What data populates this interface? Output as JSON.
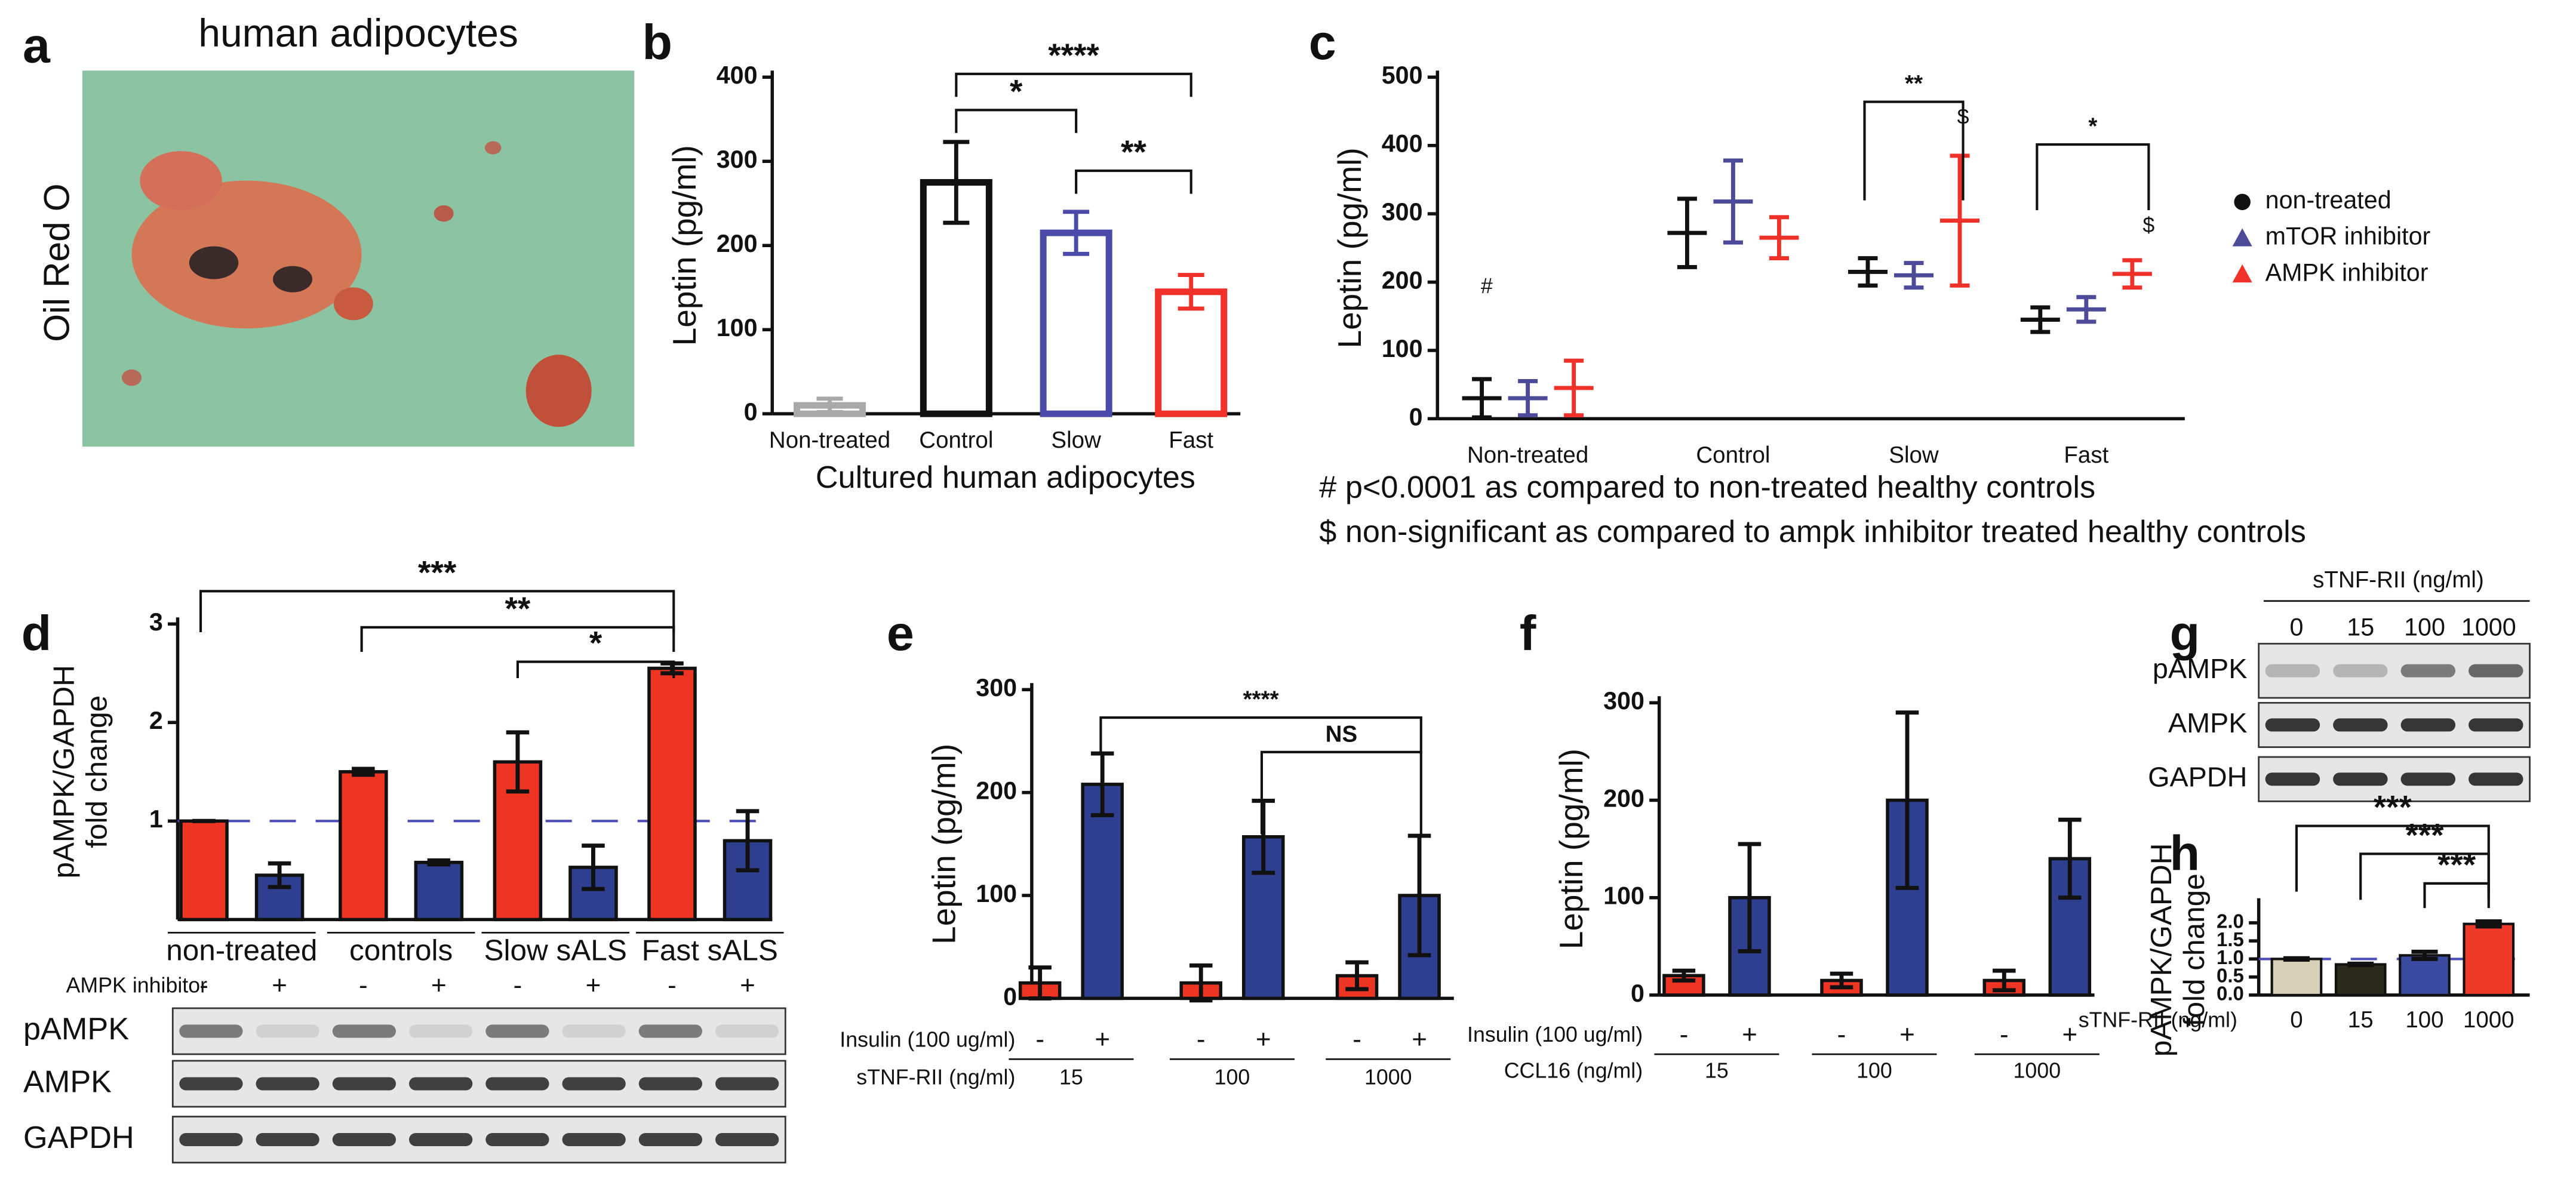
{
  "figure": {
    "panel_labels": [
      "a",
      "b",
      "c",
      "d",
      "e",
      "f",
      "g",
      "h"
    ],
    "image_title": "human adipocytes",
    "stain": "Oil Red O",
    "blot_g": {
      "title": "sTNF-RII (ng/ml)",
      "lanes": [
        "0",
        "15",
        "100",
        "1000"
      ],
      "rows": [
        "pAMPK",
        "AMPK",
        "GAPDH"
      ]
    }
  },
  "chart_data": [
    {
      "type": "bar",
      "bar_style": "outline",
      "ylabel": "Leptin (pg/ml)",
      "xlabel": "Cultured human adipocytes",
      "categories": [
        "Non-treated",
        "Control",
        "Slow",
        "Fast"
      ],
      "values": [
        10,
        275,
        215,
        145
      ],
      "errors": [
        8,
        48,
        25,
        20
      ],
      "colors": [
        "#a9a9a9",
        "#111111",
        "#4a4aa8",
        "#f0312a"
      ],
      "ylim": [
        0,
        400
      ],
      "yticks": [
        0,
        100,
        200,
        300,
        400
      ],
      "annotations": [
        "****",
        "*",
        "**"
      ]
    },
    {
      "type": "dot",
      "ylabel": "Leptin (pg/ml)",
      "categories": [
        "Non-treated",
        "Control",
        "Slow",
        "Fast"
      ],
      "series": [
        {
          "name": "non-treated",
          "color": "#111111",
          "marker": "circle",
          "values": [
            30,
            272,
            215,
            145
          ],
          "errors": [
            28,
            50,
            20,
            18
          ]
        },
        {
          "name": "mTOR inhibitor",
          "color": "#4b4b9a",
          "marker": "triangle",
          "values": [
            30,
            318,
            210,
            160
          ],
          "errors": [
            25,
            60,
            18,
            18
          ]
        },
        {
          "name": "AMPK inhibitor",
          "color": "#f0312a",
          "marker": "triangle",
          "values": [
            45,
            265,
            290,
            212
          ],
          "errors": [
            40,
            30,
            95,
            20
          ]
        }
      ],
      "ylim": [
        0,
        500
      ],
      "yticks": [
        0,
        100,
        200,
        300,
        400,
        500
      ],
      "legend": "right",
      "annotations": [
        "**",
        "*",
        "$",
        "$",
        "#"
      ],
      "notes": [
        "# p<0.0001 as compared to non-treated healthy controls",
        "$ non-significant as compared to ampk inhibitor treated healthy controls"
      ]
    },
    {
      "type": "grouped_bar",
      "ylabel": [
        "pAMPK/GAPDH",
        "fold change"
      ],
      "categories": [
        "non-treated",
        "controls",
        "Slow sALS",
        "Fast sALS"
      ],
      "series": [
        {
          "color": "#ee3524",
          "values": [
            1.0,
            1.5,
            1.6,
            2.55
          ],
          "errors": [
            0,
            0.03,
            0.3,
            0.05
          ]
        },
        {
          "color": "#2e3f8f",
          "values": [
            0.45,
            0.58,
            0.53,
            0.8
          ],
          "errors": [
            0.12,
            0.02,
            0.22,
            0.3
          ]
        }
      ],
      "ylim": [
        0,
        3
      ],
      "yticks": [
        1,
        2,
        3
      ],
      "reference_line": 1,
      "rows": [
        {
          "label": "AMPK inhibitor",
          "values": [
            "-",
            "+"
          ]
        }
      ],
      "blot_rows": [
        "pAMPK",
        "AMPK",
        "GAPDH"
      ],
      "annotations": [
        "***",
        "**",
        "*"
      ]
    },
    {
      "type": "grouped_bar",
      "ylabel": "Leptin (pg/ml)",
      "xlabel": "sTNF-RII (ng/ml)",
      "categories": [
        "15",
        "100",
        "1000"
      ],
      "series": [
        {
          "color": "#ee3524",
          "values": [
            15,
            15,
            22
          ],
          "errors": [
            15,
            17,
            13
          ]
        },
        {
          "color": "#2e3f8f",
          "values": [
            208,
            157,
            100
          ],
          "errors": [
            30,
            35,
            58
          ]
        }
      ],
      "ylim": [
        0,
        300
      ],
      "yticks": [
        0,
        100,
        200,
        300
      ],
      "rows": [
        {
          "label": "Insulin (100 ug/ml)",
          "values": [
            "-",
            "+"
          ]
        }
      ],
      "annotations": [
        "****",
        "NS"
      ]
    },
    {
      "type": "grouped_bar",
      "ylabel": "Leptin (pg/ml)",
      "xlabel": "CCL16 (ng/ml)",
      "categories": [
        "15",
        "100",
        "1000"
      ],
      "series": [
        {
          "color": "#ee3524",
          "values": [
            20,
            15,
            15
          ],
          "errors": [
            5,
            7,
            10
          ]
        },
        {
          "color": "#2e3f8f",
          "values": [
            100,
            200,
            140
          ],
          "errors": [
            55,
            90,
            40
          ]
        }
      ],
      "ylim": [
        0,
        300
      ],
      "yticks": [
        0,
        100,
        200,
        300
      ],
      "rows": [
        {
          "label": "Insulin (100 ug/ml)",
          "values": [
            "-",
            "+"
          ]
        }
      ],
      "annotations": []
    },
    {
      "type": "bar",
      "ylabel": [
        "pAMPK/GAPDH",
        "fold change"
      ],
      "xlabel": "sTNF-RII (ng/ml)",
      "categories": [
        "0",
        "15",
        "100",
        "1000"
      ],
      "values": [
        1.0,
        0.85,
        1.1,
        1.97
      ],
      "errors": [
        0.02,
        0.02,
        0.1,
        0.07
      ],
      "colors": [
        "#d8cfb8",
        "#2a2a1a",
        "#3a4aa0",
        "#ef3a2a"
      ],
      "ylim": [
        0,
        2.5
      ],
      "yticks": [
        {
          "value": 0,
          "label": "0.0"
        },
        {
          "value": 0.5,
          "label": "0.5"
        },
        {
          "value": 1,
          "label": "1.0"
        },
        {
          "value": 1.5,
          "label": "1.5"
        },
        {
          "value": 2,
          "label": "2.0"
        }
      ],
      "reference_line": 1,
      "annotations": [
        "***",
        "***",
        "***"
      ]
    }
  ]
}
